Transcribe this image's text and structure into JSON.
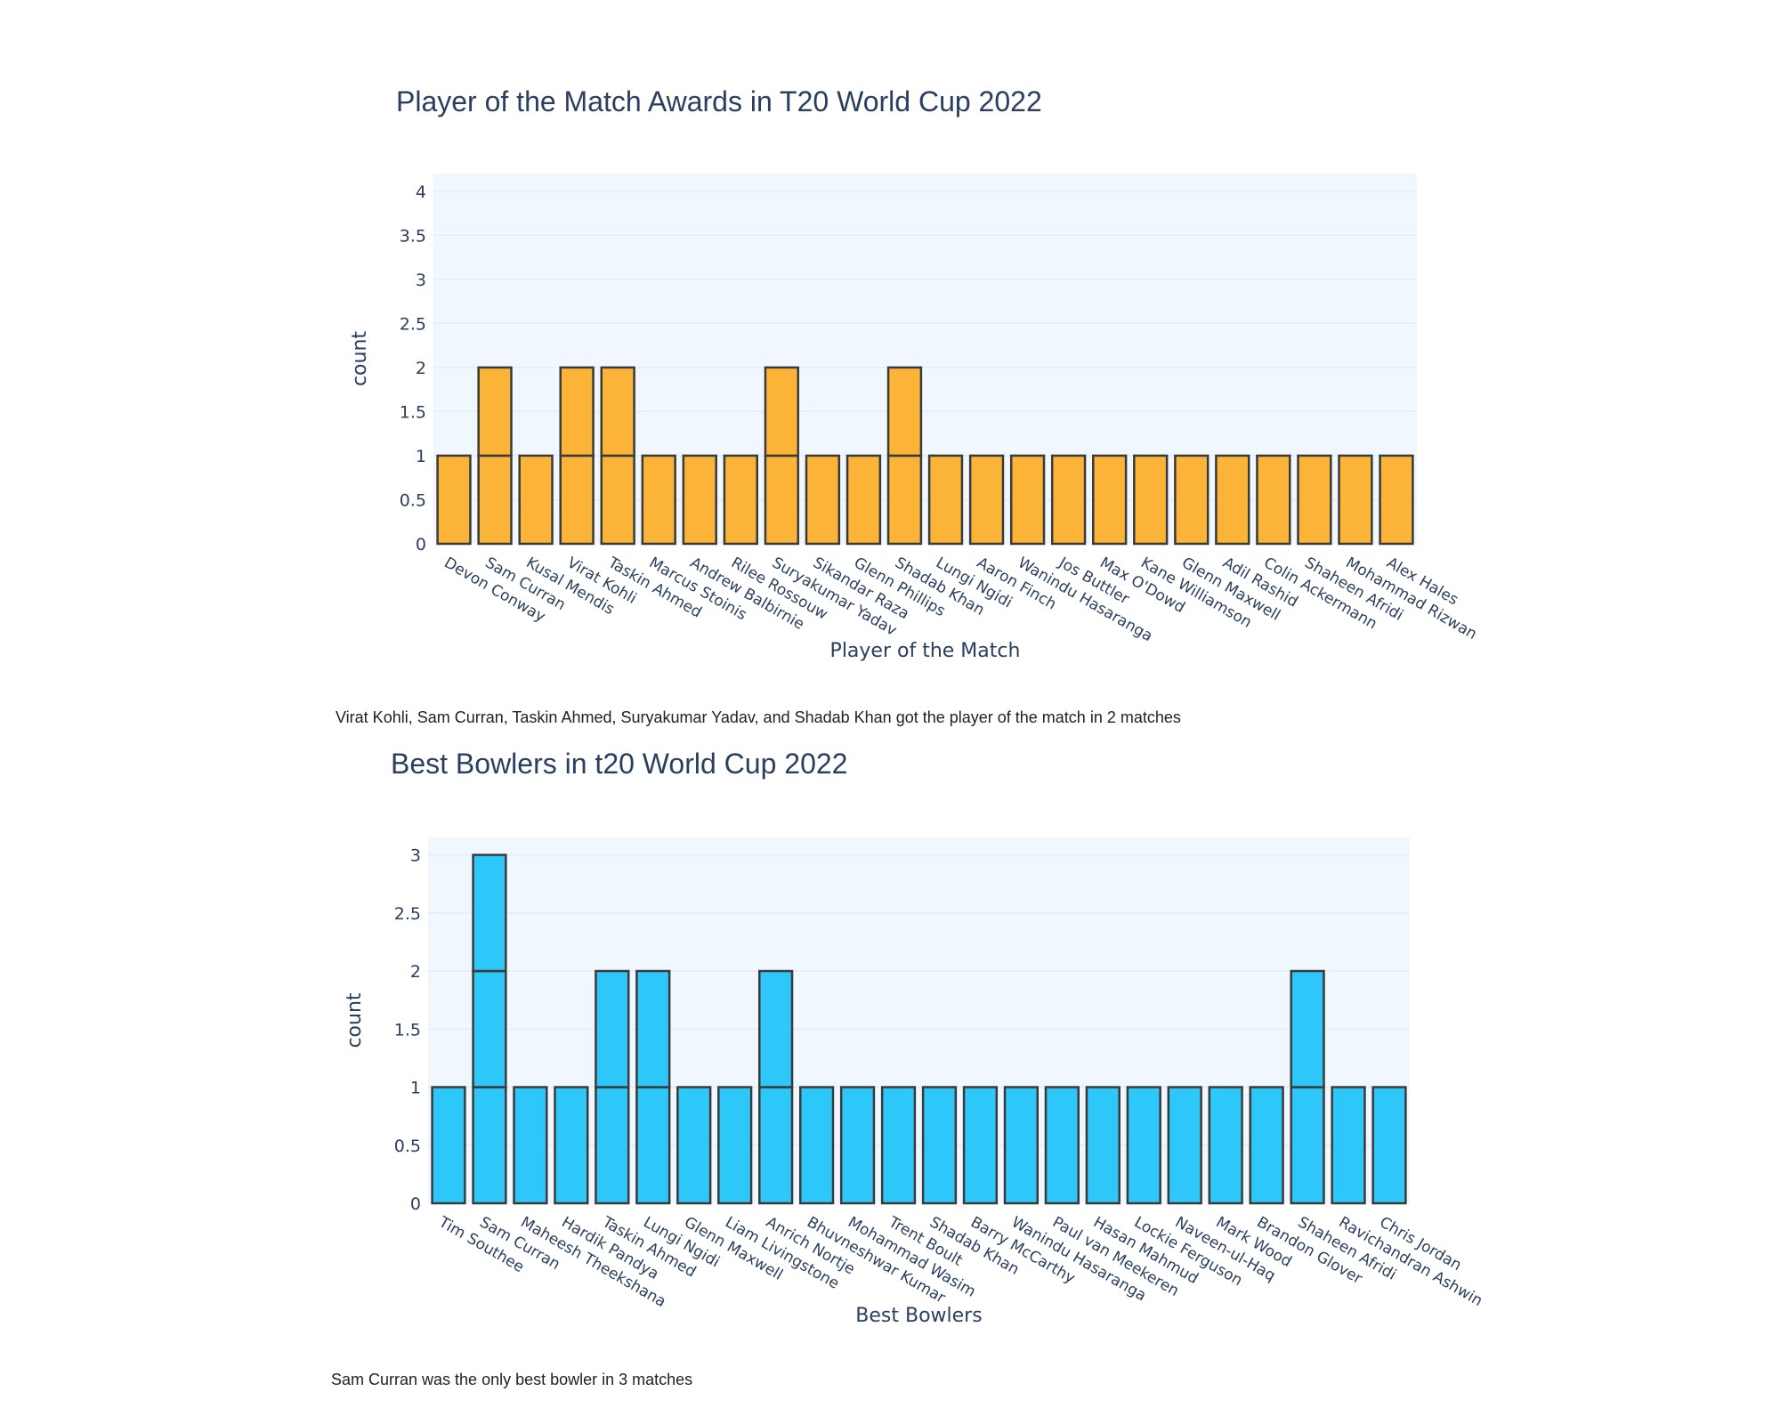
{
  "chart_data": [
    {
      "type": "bar",
      "title": "Player of the Match Awards in T20 World Cup 2022",
      "xlabel": "Player of the Match",
      "ylabel": "count",
      "ylim": [
        0,
        4.2
      ],
      "yticks": [
        0,
        0.5,
        1,
        1.5,
        2,
        2.5,
        3,
        3.5,
        4
      ],
      "categories": [
        "Devon Conway",
        "Sam Curran",
        "Kusal Mendis",
        "Virat Kohli",
        "Taskin Ahmed",
        "Marcus Stoinis",
        "Andrew Balbirnie",
        "Rilee Rossouw",
        "Suryakumar Yadav",
        "Sikandar Raza",
        "Glenn Phillips",
        "Shadab Khan",
        "Lungi Ngidi",
        "Aaron Finch",
        "Wanindu Hasaranga",
        "Jos Buttler",
        "Max O'Dowd",
        "Kane Williamson",
        "Glenn Maxwell",
        "Adil Rashid",
        "Colin Ackermann",
        "Shaheen Afridi",
        "Mohammad Rizwan",
        "Alex Hales"
      ],
      "values": [
        1,
        2,
        1,
        2,
        2,
        1,
        1,
        1,
        2,
        1,
        1,
        2,
        1,
        1,
        1,
        1,
        1,
        1,
        1,
        1,
        1,
        1,
        1,
        1
      ],
      "bar_color": "#fbb437",
      "edge_color": "#3a3a3a",
      "plot_bg": "#f0f7ff",
      "grid": true,
      "caption": "Virat Kohli, Sam Curran, Taskin Ahmed, Suryakumar Yadav, and Shadab Khan got the player of the match in 2 matches"
    },
    {
      "type": "bar",
      "title": "Best Bowlers in t20 World Cup 2022",
      "xlabel": "Best Bowlers",
      "ylabel": "count",
      "ylim": [
        0,
        3.15
      ],
      "yticks": [
        0,
        0.5,
        1,
        1.5,
        2,
        2.5,
        3
      ],
      "categories": [
        "Tim Southee",
        "Sam Curran",
        "Maheesh Theekshana",
        "Hardik Pandya",
        "Taskin Ahmed",
        "Lungi Ngidi",
        "Glenn Maxwell",
        "Liam Livingstone",
        "Anrich Nortje",
        "Bhuvneshwar Kumar",
        "Mohammad Wasim",
        "Trent Boult",
        "Shadab Khan",
        "Barry McCarthy",
        "Wanindu Hasaranga",
        "Paul van Meekeren",
        "Hasan Mahmud",
        "Lockie Ferguson",
        "Naveen-ul-Haq",
        "Mark Wood",
        "Brandon Glover",
        "Shaheen Afridi",
        "Ravichandran Ashwin",
        "Chris Jordan"
      ],
      "values": [
        1,
        3,
        1,
        1,
        2,
        2,
        1,
        1,
        2,
        1,
        1,
        1,
        1,
        1,
        1,
        1,
        1,
        1,
        1,
        1,
        1,
        2,
        1,
        1
      ],
      "bar_color": "#2ec7f9",
      "edge_color": "#3a3a3a",
      "plot_bg": "#f0f7ff",
      "grid": true,
      "caption": "Sam Curran was the only best bowler in 3 matches"
    }
  ]
}
